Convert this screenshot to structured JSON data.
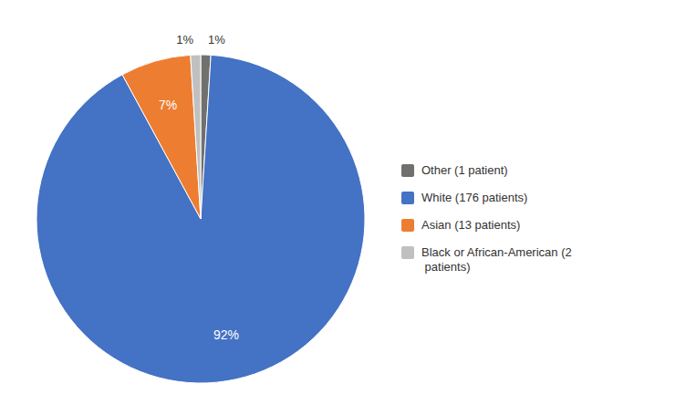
{
  "chart_data": {
    "type": "pie",
    "categories": [
      "Other (1 patient)",
      "White (176 patients)",
      "Asian (13 patients)",
      "Black or African-American (2\n patients)"
    ],
    "values": [
      1,
      92,
      7,
      1
    ],
    "value_labels": [
      "1%",
      "92%",
      "7%",
      "1%"
    ],
    "colors": [
      "#70706F",
      "#4472C4",
      "#ED7D31",
      "#C0C0C0"
    ],
    "data_labels": true,
    "legend": "right"
  }
}
